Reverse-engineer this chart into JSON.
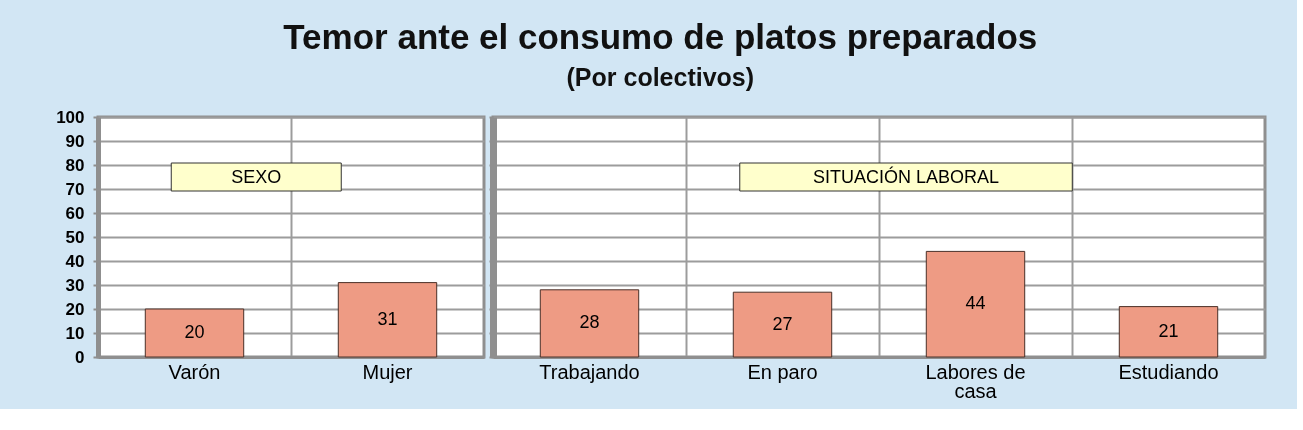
{
  "chart_data": [
    {
      "type": "bar",
      "annotations": [
        "SEXO"
      ],
      "categories": [
        "Varón",
        "Mujer"
      ],
      "values": [
        20,
        31
      ],
      "color": "#ee9b84",
      "data_labels": true,
      "ylim": [
        0,
        100
      ],
      "yticks": [
        0,
        10,
        20,
        30,
        40,
        50,
        60,
        70,
        80,
        90,
        100
      ],
      "grid": true
    },
    {
      "type": "bar",
      "title": "Temor ante el consumo de platos preparados",
      "subtitle": "(Por colectivos)",
      "annotations": [
        "SITUACIÓN LABORAL"
      ],
      "categories": [
        "Trabajando",
        "En paro",
        "Labores de casa",
        "Estudiando"
      ],
      "values": [
        28,
        27,
        44,
        21
      ],
      "color": "#ee9b84",
      "data_labels": true,
      "ylim": [
        0,
        100
      ],
      "yticks": [
        0,
        10,
        20,
        30,
        40,
        50,
        60,
        70,
        80,
        90,
        100
      ],
      "grid": true,
      "tick_labels": "x"
    }
  ]
}
